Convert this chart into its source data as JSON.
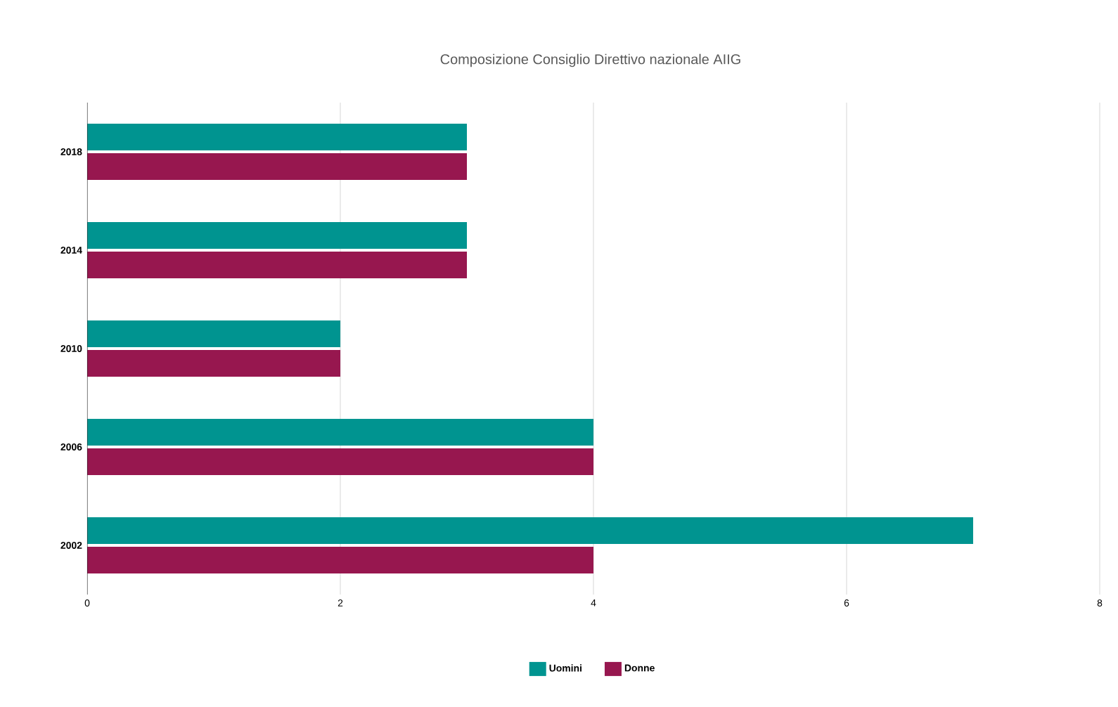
{
  "chart_data": {
    "type": "bar",
    "orientation": "horizontal",
    "title": "Composizione Consiglio Direttivo nazionale AIIG",
    "categories": [
      "2018",
      "2014",
      "2010",
      "2006",
      "2002"
    ],
    "series": [
      {
        "name": "Uomini",
        "color": "#009490",
        "values": [
          3,
          3,
          2,
          4,
          7
        ]
      },
      {
        "name": "Donne",
        "color": "#97174f",
        "values": [
          3,
          3,
          2,
          4,
          4
        ]
      }
    ],
    "xlim": [
      0,
      8
    ],
    "xticks": [
      0,
      2,
      4,
      6,
      8
    ],
    "grid": "x",
    "legend": "bottom"
  }
}
